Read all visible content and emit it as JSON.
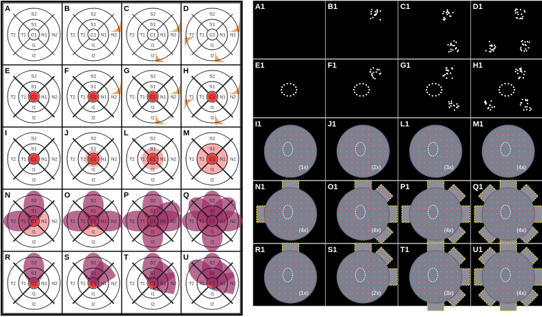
{
  "left_panels": [
    {
      "label": "A",
      "row": 0,
      "col": 0,
      "center": "none",
      "lobes": []
    },
    {
      "label": "B",
      "row": 0,
      "col": 1,
      "center": "none",
      "lobes": [
        {
          "a": -45,
          "kind": "small",
          "c": "orange"
        }
      ]
    },
    {
      "label": "C",
      "row": 0,
      "col": 2,
      "center": "none",
      "lobes": [
        {
          "a": -45,
          "kind": "small",
          "c": "orange"
        },
        {
          "a": 45,
          "kind": "small",
          "c": "orange"
        }
      ]
    },
    {
      "label": "D",
      "row": 0,
      "col": 3,
      "center": "none",
      "lobes": [
        {
          "a": -45,
          "kind": "small",
          "c": "orange"
        },
        {
          "a": 45,
          "kind": "small",
          "c": "orange"
        },
        {
          "a": 135,
          "kind": "small",
          "c": "orange"
        }
      ]
    },
    {
      "label": "E",
      "row": 1,
      "col": 0,
      "center": "dot",
      "lobes": []
    },
    {
      "label": "F",
      "row": 1,
      "col": 1,
      "center": "dot",
      "lobes": [
        {
          "a": -45,
          "kind": "small",
          "c": "orange"
        }
      ]
    },
    {
      "label": "G",
      "row": 1,
      "col": 2,
      "center": "dot",
      "lobes": [
        {
          "a": -45,
          "kind": "small",
          "c": "orange"
        },
        {
          "a": 45,
          "kind": "small",
          "c": "orange"
        }
      ]
    },
    {
      "label": "H",
      "row": 1,
      "col": 3,
      "center": "dot",
      "lobes": [
        {
          "a": -45,
          "kind": "small",
          "c": "orange"
        },
        {
          "a": 45,
          "kind": "small",
          "c": "orange"
        },
        {
          "a": 135,
          "kind": "small",
          "c": "orange"
        }
      ]
    },
    {
      "label": "I",
      "row": 2,
      "col": 0,
      "center": "ring1",
      "lobes": []
    },
    {
      "label": "J",
      "row": 2,
      "col": 1,
      "center": "ring2",
      "lobes": []
    },
    {
      "label": "L",
      "row": 2,
      "col": 2,
      "center": "ring3",
      "lobes": []
    },
    {
      "label": "M",
      "row": 2,
      "col": 3,
      "center": "ring4",
      "lobes": []
    },
    {
      "label": "N",
      "row": 3,
      "col": 0,
      "center": "ring4",
      "lobes": [
        {
          "a": -90,
          "kind": "petal",
          "c": "purple"
        },
        {
          "a": 180,
          "kind": "petal",
          "c": "purple"
        }
      ]
    },
    {
      "label": "O",
      "row": 3,
      "col": 1,
      "center": "ring4",
      "lobes": [
        {
          "a": -90,
          "kind": "petal",
          "c": "purple"
        },
        {
          "a": 180,
          "kind": "petal",
          "c": "purple"
        },
        {
          "a": 0,
          "kind": "petal",
          "c": "purple"
        }
      ]
    },
    {
      "label": "P",
      "row": 3,
      "col": 2,
      "center": "ring4",
      "lobes": [
        {
          "a": -90,
          "kind": "petal",
          "c": "purple"
        },
        {
          "a": 180,
          "kind": "petal",
          "c": "purple"
        },
        {
          "a": 0,
          "kind": "petal",
          "c": "purple"
        },
        {
          "a": 90,
          "kind": "petal",
          "c": "purple"
        },
        {
          "a": -30,
          "kind": "petal",
          "c": "purple"
        }
      ]
    },
    {
      "label": "Q",
      "row": 3,
      "col": 3,
      "center": "ring4",
      "lobes": [
        {
          "a": -90,
          "kind": "petal",
          "c": "purple"
        },
        {
          "a": 180,
          "kind": "petal",
          "c": "purple"
        },
        {
          "a": 0,
          "kind": "petal",
          "c": "purple"
        },
        {
          "a": 90,
          "kind": "petal",
          "c": "purple"
        },
        {
          "a": -135,
          "kind": "petal",
          "c": "purple"
        },
        {
          "a": -45,
          "kind": "petal",
          "c": "purple"
        }
      ]
    },
    {
      "label": "R",
      "row": 4,
      "col": 0,
      "center": "dot",
      "lobes": [
        {
          "a": -90,
          "kind": "petal",
          "c": "purple"
        }
      ]
    },
    {
      "label": "S",
      "row": 4,
      "col": 1,
      "center": "dot",
      "lobes": [
        {
          "a": -90,
          "kind": "petal",
          "c": "purple"
        },
        {
          "a": -45,
          "kind": "band",
          "c": "purple"
        }
      ]
    },
    {
      "label": "T",
      "row": 4,
      "col": 2,
      "center": "dot",
      "lobes": [
        {
          "a": -90,
          "kind": "petal",
          "c": "purple"
        },
        {
          "a": 0,
          "kind": "band",
          "c": "purple"
        },
        {
          "a": -45,
          "kind": "band",
          "c": "purple"
        }
      ]
    },
    {
      "label": "U",
      "row": 4,
      "col": 3,
      "center": "dot",
      "lobes": [
        {
          "a": -90,
          "kind": "petal",
          "c": "purple"
        },
        {
          "a": 0,
          "kind": "band",
          "c": "purple"
        },
        {
          "a": -45,
          "kind": "band",
          "c": "purple"
        },
        {
          "a": -135,
          "kind": "petal",
          "c": "purple"
        }
      ]
    }
  ],
  "sector_labels": {
    "center": "C1",
    "inner_top": "S1",
    "inner_left": "T1",
    "inner_right": "N1",
    "inner_bottom": "I1",
    "outer_top": "S2",
    "outer_left": "T2",
    "outer_right": "N2",
    "outer_bottom": "I2"
  },
  "right_panels": [
    {
      "label": "A1",
      "row": 0,
      "col": 0,
      "kind": "dots",
      "clusters": []
    },
    {
      "label": "B1",
      "row": 0,
      "col": 1,
      "kind": "dots",
      "clusters": [
        "tr"
      ]
    },
    {
      "label": "C1",
      "row": 0,
      "col": 2,
      "kind": "dots",
      "clusters": [
        "tr",
        "br"
      ]
    },
    {
      "label": "D1",
      "row": 0,
      "col": 3,
      "kind": "dots",
      "clusters": [
        "tr",
        "br",
        "bl"
      ]
    },
    {
      "label": "E1",
      "row": 1,
      "col": 0,
      "kind": "dots",
      "clusters": [
        "ring"
      ]
    },
    {
      "label": "F1",
      "row": 1,
      "col": 1,
      "kind": "dots",
      "clusters": [
        "ring",
        "tr"
      ]
    },
    {
      "label": "G1",
      "row": 1,
      "col": 2,
      "kind": "dots",
      "clusters": [
        "ring",
        "tr",
        "br"
      ]
    },
    {
      "label": "H1",
      "row": 1,
      "col": 3,
      "kind": "dots",
      "clusters": [
        "ring",
        "tr",
        "br",
        "bl"
      ]
    },
    {
      "label": "I1",
      "row": 2,
      "col": 0,
      "kind": "fundus",
      "mag": "(1x)",
      "boxes": []
    },
    {
      "label": "J1",
      "row": 2,
      "col": 1,
      "kind": "fundus",
      "mag": "(2x)",
      "boxes": []
    },
    {
      "label": "L1",
      "row": 2,
      "col": 2,
      "kind": "fundus",
      "mag": "(3x)",
      "boxes": []
    },
    {
      "label": "M1",
      "row": 2,
      "col": 3,
      "kind": "fundus",
      "mag": "(4x)",
      "boxes": []
    },
    {
      "label": "N1",
      "row": 3,
      "col": 0,
      "kind": "fundus",
      "mag": "(4x)",
      "boxes": [
        -90,
        180
      ]
    },
    {
      "label": "O1",
      "row": 3,
      "col": 1,
      "kind": "fundus",
      "mag": "(4x)",
      "boxes": [
        -90,
        0,
        -45,
        45
      ]
    },
    {
      "label": "P1",
      "row": 3,
      "col": 2,
      "kind": "fundus",
      "mag": "(4x)",
      "boxes": [
        -90,
        0,
        90,
        -45,
        45,
        180
      ]
    },
    {
      "label": "Q1",
      "row": 3,
      "col": 3,
      "kind": "fundus",
      "mag": "(4x)",
      "boxes": [
        -90,
        0,
        90,
        180,
        -45,
        45,
        135,
        -135
      ]
    },
    {
      "label": "R1",
      "row": 4,
      "col": 0,
      "kind": "fundus",
      "mag": "(1x)",
      "boxes": [
        -90
      ]
    },
    {
      "label": "S1",
      "row": 4,
      "col": 1,
      "kind": "fundus",
      "mag": "(2x)",
      "boxes": [
        -90,
        -45,
        0
      ]
    },
    {
      "label": "T1",
      "row": 4,
      "col": 2,
      "kind": "fundus",
      "mag": "(3x)",
      "boxes": [
        -90,
        -45,
        0,
        45,
        90
      ]
    },
    {
      "label": "U1",
      "row": 4,
      "col": 3,
      "kind": "fundus",
      "mag": "(4x)",
      "boxes": [
        -90,
        -45,
        0,
        45,
        90,
        135,
        180,
        -135
      ]
    }
  ],
  "colors": {
    "orange": "#eea25c",
    "purple": "#9c3069",
    "red": "#ee3b3b",
    "pink": "#f7a1a1",
    "grid_line": "#222222",
    "dark_bg": "#000000",
    "fundus": "#7b8190",
    "box": "#f2e020"
  }
}
